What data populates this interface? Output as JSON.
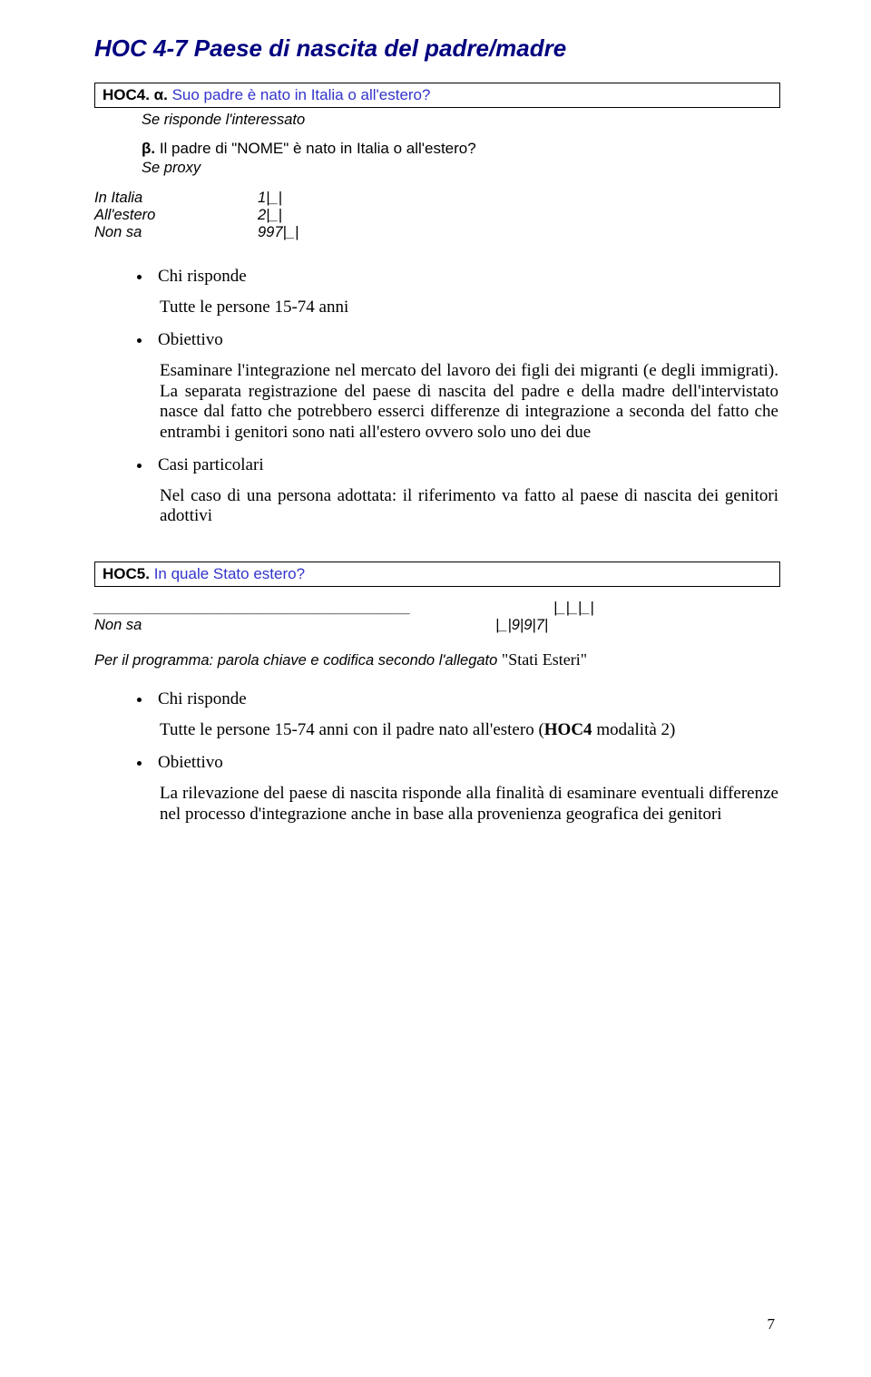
{
  "main_heading": "HOC 4-7 Paese di nascita del padre/madre",
  "hoc4": {
    "code": "HOC4. α.",
    "question": " Suo padre è nato in Italia o all'estero?",
    "sub_note": "Se risponde l'interessato",
    "beta_code": "β. ",
    "beta_text": "Il padre di \"NOME\" è nato in Italia o all'estero?",
    "se_proxy": "Se proxy",
    "opts": [
      {
        "label": "In Italia",
        "val": "1|_|"
      },
      {
        "label": "All'estero",
        "val": "2|_|"
      },
      {
        "label": "Non sa",
        "val": "997|_|"
      }
    ]
  },
  "bullets1": {
    "chi": "Chi risponde",
    "chi_body": "Tutte le persone 15-74 anni",
    "obiettivo": "Obiettivo",
    "obiettivo_body": "Esaminare l'integrazione nel mercato del lavoro dei figli dei migranti (e degli immigrati). La separata registrazione del paese di nascita del padre e della madre dell'intervistato nasce dal fatto che potrebbero esserci differenze di integrazione a seconda del fatto che entrambi i genitori sono nati all'estero ovvero solo uno dei due",
    "casi": "Casi particolari",
    "casi_body": "Nel caso di una persona adottata: il riferimento va fatto al paese di nascita dei genitori adottivi"
  },
  "hoc5": {
    "code": "HOC5.",
    "question": " In quale Stato estero?",
    "blanks_right": "|_|_|_|",
    "nonsa_label": "Non sa",
    "nonsa_val": "|_|9|9|7|",
    "program_note": "Per il programma: parola chiave e codifica secondo l'allegato ",
    "program_quoted": "\"Stati Esteri\""
  },
  "bullets2": {
    "chi": "Chi risponde",
    "chi_body_pre": "Tutte le persone 15-74 anni con il padre nato all'estero (",
    "chi_body_bold": "HOC4",
    "chi_body_post": " modalità 2)",
    "obiettivo": "Obiettivo",
    "obiettivo_body": "La rilevazione del paese di nascita risponde alla finalità di esaminare eventuali differenze nel processo d'integrazione anche in base alla provenienza geografica dei genitori"
  },
  "page_number": "7"
}
